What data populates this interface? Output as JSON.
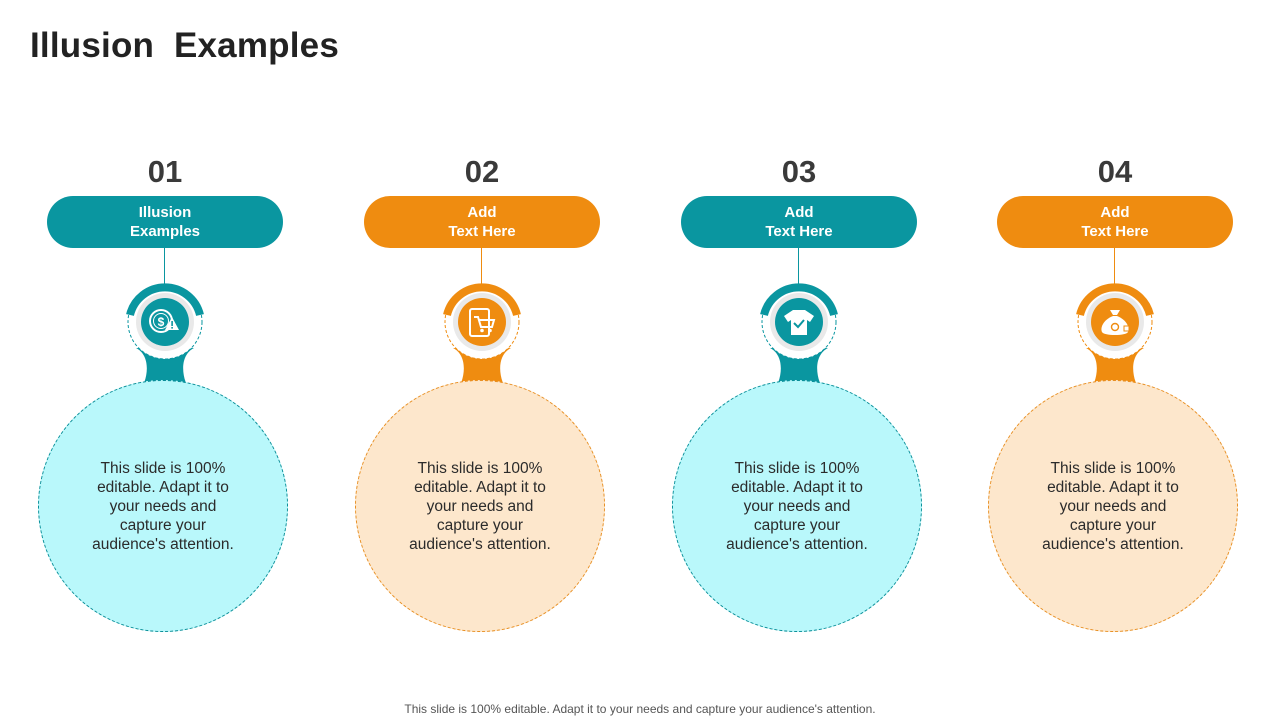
{
  "slide": {
    "title": "Illusion  Examples",
    "footer": "This slide is 100% editable. Adapt it to your needs and capture your audience's attention."
  },
  "steps": [
    {
      "number": "01",
      "label_line1": "Illusion",
      "label_line2": "Examples",
      "body": "This slide is 100% editable. Adapt it to your needs and capture your audience's attention.",
      "icon": "dollar-coin-info-icon",
      "color": "#0a96a0"
    },
    {
      "number": "02",
      "label_line1": "Add",
      "label_line2": "Text Here",
      "body": "This slide is 100% editable. Adapt it to your needs and capture your audience's attention.",
      "icon": "tablet-shopping-cart-icon",
      "color": "#ef8c10"
    },
    {
      "number": "03",
      "label_line1": "Add",
      "label_line2": "Text Here",
      "body": "This slide is 100% editable. Adapt it to your needs and capture your audience's attention.",
      "icon": "tshirt-icon",
      "color": "#0a96a0"
    },
    {
      "number": "04",
      "label_line1": "Add",
      "label_line2": "Text Here",
      "body": "This slide is 100% editable. Adapt it to your needs and capture your audience's attention.",
      "icon": "money-bag-icon",
      "color": "#ef8c10"
    }
  ]
}
